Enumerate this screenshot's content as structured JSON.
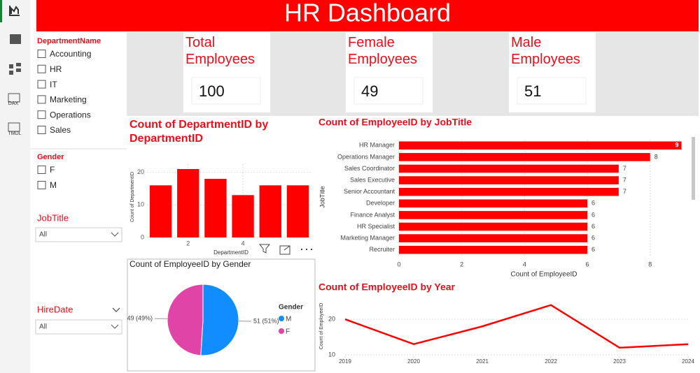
{
  "nav": {
    "items": [
      "DAX",
      "TMDL"
    ]
  },
  "header": {
    "title": "HR Dashboard"
  },
  "slicers": {
    "department": {
      "title": "DepartmentName",
      "options": [
        "Accounting",
        "HR",
        "IT",
        "Marketing",
        "Operations",
        "Sales"
      ]
    },
    "gender": {
      "title": "Gender",
      "options": [
        "F",
        "M"
      ]
    },
    "job_title": {
      "title": "JobTitle",
      "selected": "All"
    },
    "hire_date": {
      "title": "HireDate",
      "selected": "All"
    }
  },
  "cards": [
    {
      "label": "Total Employees",
      "value": 100
    },
    {
      "label": "Female Employees",
      "value": 49
    },
    {
      "label": "Male Employees",
      "value": 51
    }
  ],
  "chart_data": [
    {
      "type": "bar",
      "title": "Count of DepartmentID by DepartmentID",
      "x_label": "DepartmentID",
      "y_label": "Count of DepartmentID",
      "x": [
        1,
        2,
        3,
        4,
        5,
        6
      ],
      "values": [
        16,
        21,
        18,
        13,
        16,
        16
      ],
      "color": "#ff0000",
      "xlim": [
        0.5,
        6.5
      ],
      "xticks": [
        2,
        4
      ],
      "ylim": [
        0,
        22.5
      ],
      "yticks": [
        0,
        10,
        20
      ],
      "grid": true
    },
    {
      "type": "hbar",
      "title": "Count of EmployeeID by JobTitle",
      "x_label": "Count of EmployeeID",
      "y_label": "JobTitle",
      "categories": [
        "HR Manager",
        "Operations Manager",
        "Sales Coordinator",
        "Sales Executive",
        "Senior Accountant",
        "Developer",
        "Finance Analyst",
        "HR Specialist",
        "Marketing Manager",
        "Recruiter"
      ],
      "values": [
        9,
        8,
        7,
        7,
        7,
        6,
        6,
        6,
        6,
        6
      ],
      "color": "#ff0000",
      "xlim": [
        0,
        9.3
      ],
      "xticks": [
        0,
        2,
        4,
        6,
        8
      ],
      "grid": true
    },
    {
      "type": "pie",
      "title": "Count of EmployeeID by Gender",
      "legend_title": "Gender",
      "categories": [
        "M",
        "F"
      ],
      "values": [
        51,
        49
      ],
      "value_labels": [
        "51 (51%)",
        "49 (49%)"
      ],
      "colors": [
        "#118dff",
        "#e044a7"
      ]
    },
    {
      "type": "line",
      "title": "Count of EmployeeID by Year",
      "y_label": "Count of EmployeeID",
      "x": [
        2019,
        2020,
        2021,
        2022,
        2023,
        2024
      ],
      "values": [
        20,
        13,
        18,
        24,
        12,
        13
      ],
      "color": "#ff0000",
      "xlim": [
        2019,
        2024
      ],
      "xticks": [
        2019,
        2020,
        2021,
        2022,
        2023,
        2024
      ],
      "ylim": [
        9.6,
        26.5
      ],
      "yticks": [
        10,
        20
      ],
      "grid": true
    }
  ]
}
